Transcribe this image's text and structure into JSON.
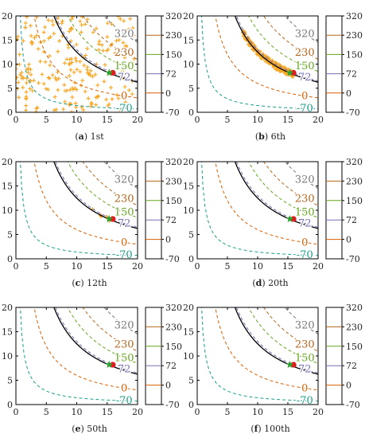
{
  "chart_data": [
    {
      "type": "contour",
      "panel_label": "(a)",
      "caption": "1st",
      "samples": "spread",
      "xlim": [
        0,
        20
      ],
      "ylim": [
        0,
        20
      ]
    },
    {
      "type": "contour",
      "panel_label": "(b)",
      "caption": "6th",
      "samples": "band",
      "xlim": [
        0,
        20
      ],
      "ylim": [
        0,
        20
      ]
    },
    {
      "type": "contour",
      "panel_label": "(c)",
      "caption": "12th",
      "samples": "few",
      "xlim": [
        0,
        20
      ],
      "ylim": [
        0,
        20
      ]
    },
    {
      "type": "contour",
      "panel_label": "(d)",
      "caption": "20th",
      "samples": "none",
      "xlim": [
        0,
        20
      ],
      "ylim": [
        0,
        20
      ]
    },
    {
      "type": "contour",
      "panel_label": "(e)",
      "caption": "50th",
      "samples": "none",
      "xlim": [
        0,
        20
      ],
      "ylim": [
        0,
        20
      ]
    },
    {
      "type": "contour",
      "panel_label": "(f)",
      "caption": "100th",
      "samples": "none",
      "xlim": [
        0,
        20
      ],
      "ylim": [
        0,
        20
      ]
    }
  ],
  "shared": {
    "x_ticks": [
      "0",
      "5",
      "10",
      "15",
      "20"
    ],
    "y_ticks": [
      "0",
      "5",
      "10",
      "15",
      "20"
    ],
    "contours": [
      {
        "label": "-70",
        "k": 14,
        "color": "#1a9e8a"
      },
      {
        "label": "0",
        "k": 60,
        "color": "#d95f02"
      },
      {
        "label": "72",
        "k": 130,
        "color": "#7570b3"
      },
      {
        "label": "150",
        "k": 170,
        "color": "#66a61e"
      },
      {
        "label": "230",
        "k": 220,
        "color": "#b5651d"
      },
      {
        "label": "320",
        "k": 290,
        "color": "#777777"
      }
    ],
    "constraint_k": 125,
    "optimum": {
      "x": 15.6,
      "y": 8.2,
      "star_color": "#2ca02c",
      "dot_color": "#e41a1c"
    },
    "sample_color": "#f5a623",
    "colorbar": {
      "ticks": [
        "320",
        "230",
        "150",
        "72",
        "0",
        "-70"
      ],
      "tick_colors": [
        "#777777",
        "#b5651d",
        "#66a61e",
        "#7570b3",
        "#d95f02",
        "#1a9e8a"
      ]
    }
  }
}
